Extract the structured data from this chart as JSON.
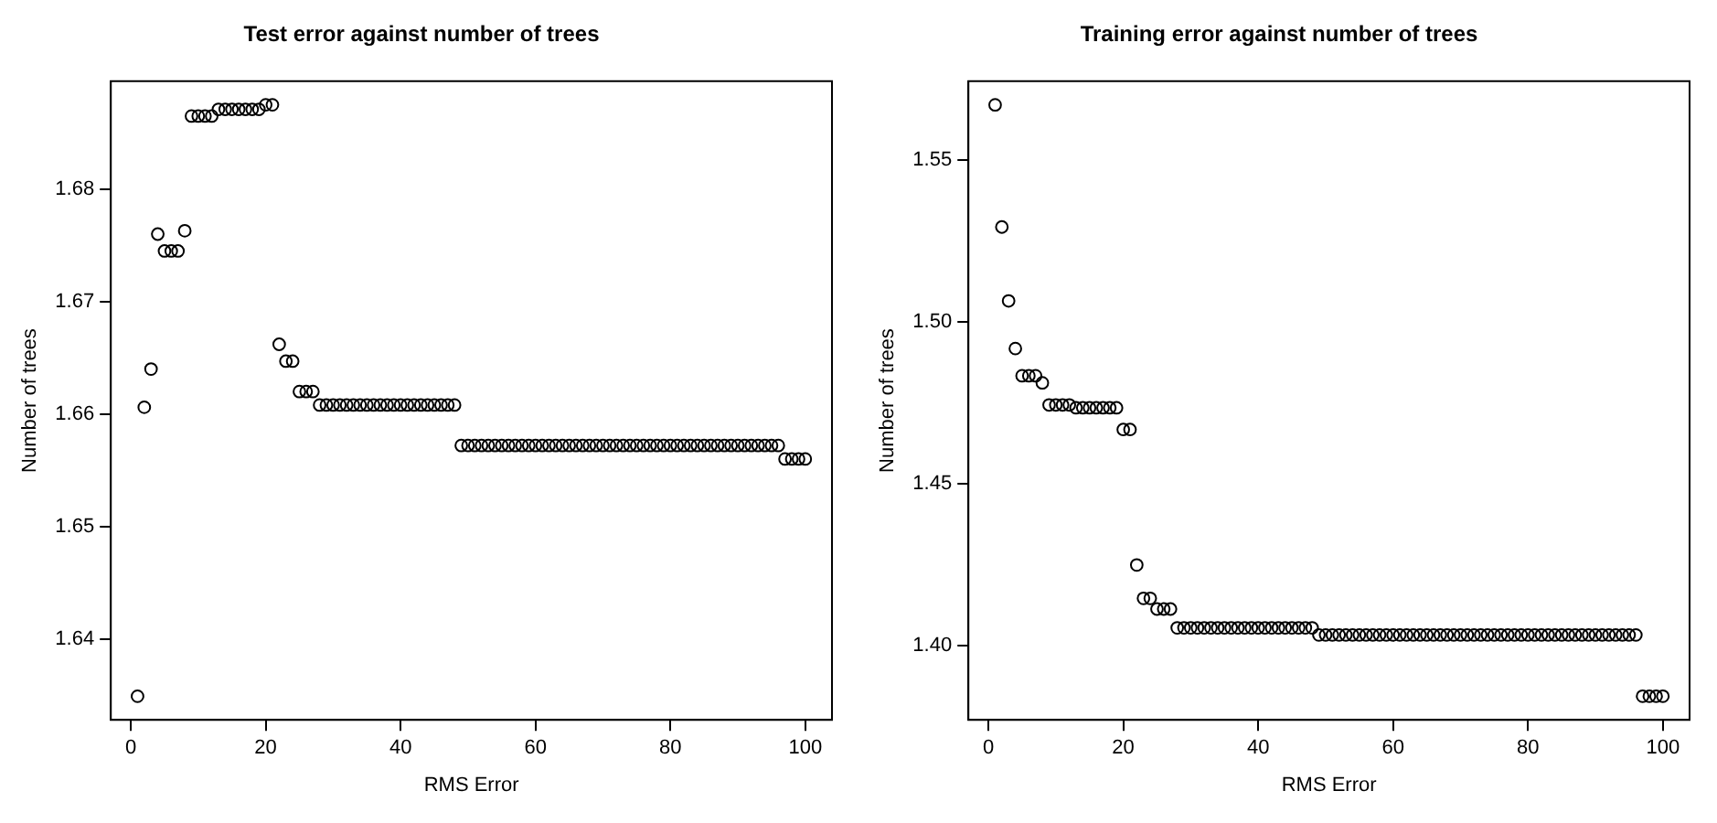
{
  "chart_data": [
    {
      "type": "scatter",
      "title": "Test error against number of trees",
      "xlabel": "RMS Error",
      "ylabel": "Number of trees",
      "color": "#000000",
      "marker": "circle",
      "grid": false,
      "xlim": [
        -2.96,
        103.96
      ],
      "xticks": [
        0,
        20,
        40,
        60,
        80,
        100
      ],
      "ylim": [
        1.6328,
        1.6896
      ],
      "yticks": [
        1.64,
        1.65,
        1.66,
        1.67,
        1.68
      ],
      "x": [
        1,
        2,
        3,
        4,
        5,
        6,
        7,
        8,
        9,
        10,
        11,
        12,
        13,
        14,
        15,
        16,
        17,
        18,
        19,
        20,
        21,
        22,
        23,
        24,
        25,
        26,
        27,
        28,
        29,
        30,
        31,
        32,
        33,
        34,
        35,
        36,
        37,
        38,
        39,
        40,
        41,
        42,
        43,
        44,
        45,
        46,
        47,
        48,
        49,
        50,
        51,
        52,
        53,
        54,
        55,
        56,
        57,
        58,
        59,
        60,
        61,
        62,
        63,
        64,
        65,
        66,
        67,
        68,
        69,
        70,
        71,
        72,
        73,
        74,
        75,
        76,
        77,
        78,
        79,
        80,
        81,
        82,
        83,
        84,
        85,
        86,
        87,
        88,
        89,
        90,
        91,
        92,
        93,
        94,
        95,
        96,
        97,
        98,
        99,
        100
      ],
      "values": [
        1.6349,
        1.6606,
        1.664,
        1.676,
        1.6745,
        1.6745,
        1.6745,
        1.6763,
        1.6865,
        1.6865,
        1.6865,
        1.6865,
        1.6871,
        1.6871,
        1.6871,
        1.6871,
        1.6871,
        1.6871,
        1.6871,
        1.6875,
        1.6875,
        1.6662,
        1.6647,
        1.6647,
        1.662,
        1.662,
        1.662,
        1.6608,
        1.6608,
        1.6608,
        1.6608,
        1.6608,
        1.6608,
        1.6608,
        1.6608,
        1.6608,
        1.6608,
        1.6608,
        1.6608,
        1.6608,
        1.6608,
        1.6608,
        1.6608,
        1.6608,
        1.6608,
        1.6608,
        1.6608,
        1.6608,
        1.6572,
        1.6572,
        1.6572,
        1.6572,
        1.6572,
        1.6572,
        1.6572,
        1.6572,
        1.6572,
        1.6572,
        1.6572,
        1.6572,
        1.6572,
        1.6572,
        1.6572,
        1.6572,
        1.6572,
        1.6572,
        1.6572,
        1.6572,
        1.6572,
        1.6572,
        1.6572,
        1.6572,
        1.6572,
        1.6572,
        1.6572,
        1.6572,
        1.6572,
        1.6572,
        1.6572,
        1.6572,
        1.6572,
        1.6572,
        1.6572,
        1.6572,
        1.6572,
        1.6572,
        1.6572,
        1.6572,
        1.6572,
        1.6572,
        1.6572,
        1.6572,
        1.6572,
        1.6572,
        1.6572,
        1.6572,
        1.656,
        1.656,
        1.656,
        1.656
      ]
    },
    {
      "type": "scatter",
      "title": "Training error against number of trees",
      "xlabel": "RMS Error",
      "ylabel": "Number of trees",
      "color": "#000000",
      "marker": "circle",
      "grid": false,
      "xlim": [
        -2.96,
        103.96
      ],
      "xticks": [
        0,
        20,
        40,
        60,
        80,
        100
      ],
      "ylim": [
        1.3772,
        1.5743
      ],
      "yticks": [
        {
          "value": 1.4,
          "label": "1.40"
        },
        1.45,
        {
          "value": 1.5,
          "label": "1.50"
        },
        1.55
      ],
      "x": [
        1,
        2,
        3,
        4,
        5,
        6,
        7,
        8,
        9,
        10,
        11,
        12,
        13,
        14,
        15,
        16,
        17,
        18,
        19,
        20,
        21,
        22,
        23,
        24,
        25,
        26,
        27,
        28,
        29,
        30,
        31,
        32,
        33,
        34,
        35,
        36,
        37,
        38,
        39,
        40,
        41,
        42,
        43,
        44,
        45,
        46,
        47,
        48,
        49,
        50,
        51,
        52,
        53,
        54,
        55,
        56,
        57,
        58,
        59,
        60,
        61,
        62,
        63,
        64,
        65,
        66,
        67,
        68,
        69,
        70,
        71,
        72,
        73,
        74,
        75,
        76,
        77,
        78,
        79,
        80,
        81,
        82,
        83,
        84,
        85,
        86,
        87,
        88,
        89,
        90,
        91,
        92,
        93,
        94,
        95,
        96,
        97,
        98,
        99,
        100
      ],
      "values": [
        1.567,
        1.5293,
        1.5065,
        1.4918,
        1.4834,
        1.4834,
        1.4834,
        1.4812,
        1.4744,
        1.4744,
        1.4744,
        1.4744,
        1.4735,
        1.4735,
        1.4735,
        1.4735,
        1.4735,
        1.4735,
        1.4735,
        1.4668,
        1.4668,
        1.425,
        1.4147,
        1.4147,
        1.4114,
        1.4114,
        1.4114,
        1.4056,
        1.4056,
        1.4056,
        1.4056,
        1.4056,
        1.4056,
        1.4056,
        1.4056,
        1.4056,
        1.4056,
        1.4056,
        1.4056,
        1.4056,
        1.4056,
        1.4056,
        1.4056,
        1.4056,
        1.4056,
        1.4056,
        1.4056,
        1.4056,
        1.4034,
        1.4034,
        1.4034,
        1.4034,
        1.4034,
        1.4034,
        1.4034,
        1.4034,
        1.4034,
        1.4034,
        1.4034,
        1.4034,
        1.4034,
        1.4034,
        1.4034,
        1.4034,
        1.4034,
        1.4034,
        1.4034,
        1.4034,
        1.4034,
        1.4034,
        1.4034,
        1.4034,
        1.4034,
        1.4034,
        1.4034,
        1.4034,
        1.4034,
        1.4034,
        1.4034,
        1.4034,
        1.4034,
        1.4034,
        1.4034,
        1.4034,
        1.4034,
        1.4034,
        1.4034,
        1.4034,
        1.4034,
        1.4034,
        1.4034,
        1.4034,
        1.4034,
        1.4034,
        1.4034,
        1.4034,
        1.3845,
        1.3845,
        1.3845,
        1.3845
      ]
    }
  ]
}
